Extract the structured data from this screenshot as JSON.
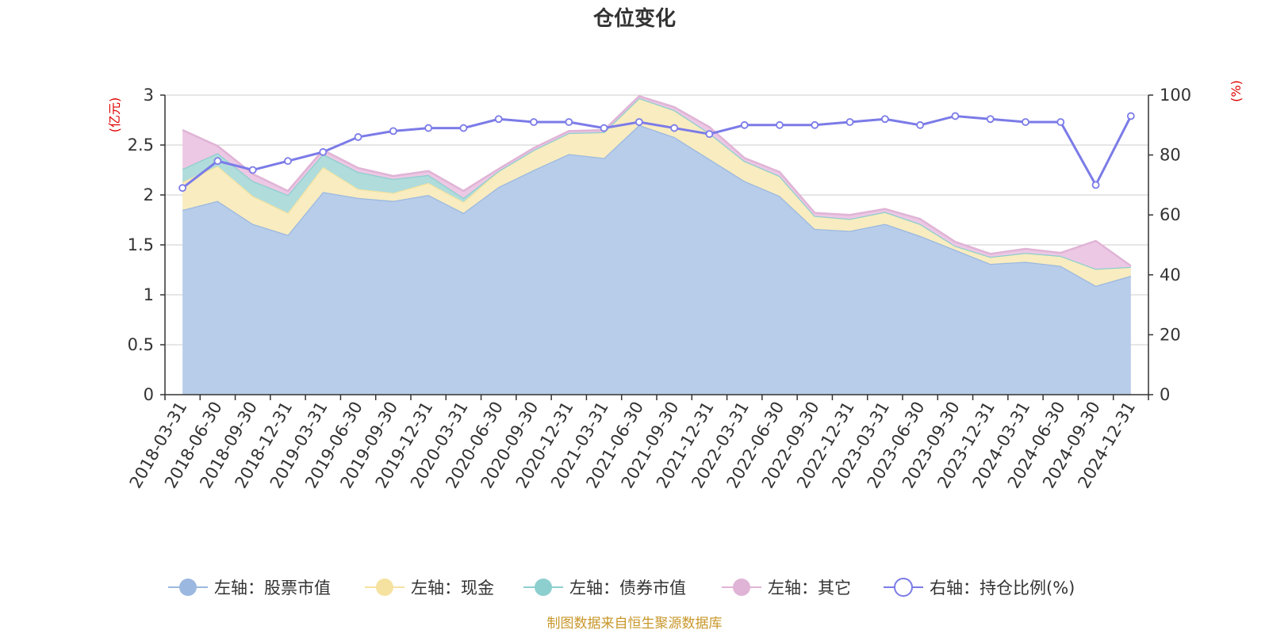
{
  "chart_data": {
    "type": "area",
    "title": "仓位变化",
    "categories": [
      "2018-03-31",
      "2018-06-30",
      "2018-09-30",
      "2018-12-31",
      "2019-03-31",
      "2019-06-30",
      "2019-09-30",
      "2019-12-31",
      "2020-03-31",
      "2020-06-30",
      "2020-09-30",
      "2020-12-31",
      "2021-03-31",
      "2021-06-30",
      "2021-09-30",
      "2021-12-31",
      "2022-03-31",
      "2022-06-30",
      "2022-09-30",
      "2022-12-31",
      "2023-03-31",
      "2023-06-30",
      "2023-09-30",
      "2023-12-31",
      "2024-03-31",
      "2024-06-30",
      "2024-09-30",
      "2024-12-31"
    ],
    "left_axis": {
      "unit": "(亿元)",
      "ylim": [
        0,
        3
      ],
      "ticks": [
        "0",
        "0.5",
        "1",
        "1.5",
        "2",
        "2.5",
        "3"
      ]
    },
    "right_axis": {
      "unit": "(%)",
      "ylim": [
        0,
        100
      ],
      "ticks": [
        "0",
        "20",
        "40",
        "60",
        "80",
        "100"
      ]
    },
    "series": [
      {
        "name": "左轴：股票市值",
        "axis": "left",
        "color": "#9bb8e0",
        "fill": "#b8cdea",
        "values": [
          1.85,
          1.94,
          1.71,
          1.6,
          2.03,
          1.97,
          1.94,
          2.0,
          1.82,
          2.08,
          2.25,
          2.41,
          2.37,
          2.7,
          2.58,
          2.36,
          2.14,
          1.99,
          1.66,
          1.64,
          1.71,
          1.59,
          1.45,
          1.31,
          1.33,
          1.29,
          1.09,
          1.19
        ]
      },
      {
        "name": "左轴：现金",
        "axis": "left",
        "color": "#f5e2a0",
        "fill": "#f8ecc0",
        "values": [
          0.28,
          0.35,
          0.28,
          0.22,
          0.25,
          0.09,
          0.08,
          0.12,
          0.11,
          0.16,
          0.2,
          0.21,
          0.26,
          0.27,
          0.27,
          0.26,
          0.2,
          0.2,
          0.13,
          0.12,
          0.12,
          0.12,
          0.04,
          0.07,
          0.09,
          0.1,
          0.17,
          0.09
        ]
      },
      {
        "name": "左轴：债券市值",
        "axis": "left",
        "color": "#8dcfcf",
        "fill": "#b0dcdc",
        "values": [
          0.13,
          0.13,
          0.15,
          0.18,
          0.13,
          0.17,
          0.14,
          0.08,
          0.04,
          0,
          0,
          0,
          0,
          0,
          0,
          0,
          0,
          0,
          0,
          0,
          0,
          0,
          0,
          0,
          0,
          0,
          0,
          0
        ]
      },
      {
        "name": "左轴：其它",
        "axis": "left",
        "color": "#e0b4d6",
        "fill": "#ecc8e4",
        "values": [
          0.39,
          0.07,
          0.07,
          0.04,
          0.04,
          0.04,
          0.03,
          0.04,
          0.07,
          0.02,
          0.02,
          0.02,
          0.02,
          0.02,
          0.03,
          0.06,
          0.03,
          0.04,
          0.03,
          0.04,
          0.03,
          0.05,
          0.04,
          0.03,
          0.04,
          0.03,
          0.28,
          0.01
        ]
      },
      {
        "name": "右轴：持仓比例(%)",
        "axis": "right",
        "color": "#7b7be8",
        "values": [
          69,
          78,
          75,
          78,
          81,
          86,
          88,
          89,
          89,
          92,
          91,
          91,
          89,
          91,
          89,
          87,
          90,
          90,
          90,
          91,
          92,
          90,
          93,
          92,
          91,
          91,
          70,
          93
        ]
      }
    ]
  },
  "legend": [
    {
      "label": "左轴：股票市值",
      "color": "#9bb8e0",
      "marker": "filled"
    },
    {
      "label": "左轴：现金",
      "color": "#f5e2a0",
      "marker": "filled"
    },
    {
      "label": "左轴：债券市值",
      "color": "#8dcfcf",
      "marker": "filled"
    },
    {
      "label": "左轴：其它",
      "color": "#e0b4d6",
      "marker": "filled"
    },
    {
      "label": "右轴：持仓比例(%)",
      "color": "#7b7be8",
      "marker": "hollow"
    }
  ],
  "source_note": "制图数据来自恒生聚源数据库"
}
